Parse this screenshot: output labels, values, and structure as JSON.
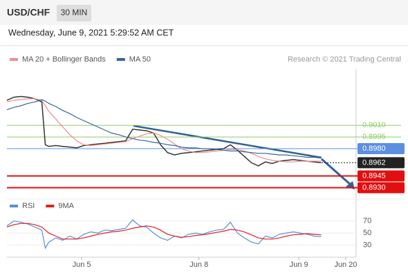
{
  "header": {
    "symbol": "USD/CHF",
    "interval": "30 MIN",
    "timestamp": "Wednesday, June 9, 2021 5:29:52 AM CET"
  },
  "source": "Research © 2021 Trading Central",
  "chart_data": [
    {
      "type": "line",
      "x": [
        0,
        2,
        4,
        6,
        8,
        10,
        11,
        12,
        14,
        16,
        18,
        20,
        22,
        24,
        26,
        28,
        30,
        32,
        34,
        36,
        38,
        40,
        42,
        44,
        46,
        48,
        50,
        52,
        54,
        56,
        58,
        60,
        62,
        64,
        66,
        68,
        70,
        72,
        74,
        76,
        78,
        80,
        82,
        84,
        86,
        88,
        90
      ],
      "xlim": [
        0,
        100
      ],
      "xticks": [
        {
          "value": 21.4,
          "label": "Jun 5"
        },
        {
          "value": 55,
          "label": "Jun 8"
        },
        {
          "value": 83.6,
          "label": "Jun 9"
        },
        {
          "value": 97,
          "label": "Jun 20"
        }
      ],
      "ylim": [
        0.8918,
        0.9082
      ],
      "series": [
        {
          "color": "#333333",
          "values": [
            0.9042,
            0.9046,
            0.9047,
            0.9046,
            0.9044,
            0.904,
            0.8985,
            0.8983,
            0.8984,
            0.8983,
            0.8982,
            0.8981,
            0.8984,
            0.8985,
            0.8986,
            0.8987,
            0.8988,
            0.8989,
            0.899,
            0.9005,
            0.9004,
            0.9003,
            0.9,
            0.8985,
            0.8975,
            0.8972,
            0.8974,
            0.8975,
            0.8976,
            0.8977,
            0.8978,
            0.8979,
            0.898,
            0.8985,
            0.8978,
            0.897,
            0.8962,
            0.8958,
            0.8963,
            0.8961,
            0.8964,
            0.8965,
            0.8966,
            0.8965,
            0.8964,
            0.8963,
            0.8962
          ]
        },
        {
          "name": "MA 20 + Bollinger Bands",
          "color": "#f08c8c",
          "values": [
            0.904,
            0.9042,
            0.9043,
            0.9044,
            0.9044,
            0.9042,
            0.9035,
            0.9028,
            0.9018,
            0.9008,
            0.8998,
            0.899,
            0.8985,
            0.8984,
            0.8985,
            0.8986,
            0.8987,
            0.8988,
            0.8989,
            0.8993,
            0.8996,
            0.8999,
            0.9,
            0.8997,
            0.8992,
            0.8986,
            0.898,
            0.8977,
            0.8975,
            0.8975,
            0.8976,
            0.8977,
            0.8978,
            0.8979,
            0.8979,
            0.8977,
            0.8974,
            0.897,
            0.8967,
            0.8965,
            0.8964,
            0.8963,
            0.8963,
            0.8964,
            0.8964,
            0.8964,
            0.8964
          ]
        },
        {
          "name": "MA 50",
          "color": "#336699",
          "values": [
            0.903,
            0.9033,
            0.9035,
            0.9038,
            0.904,
            0.9043,
            0.9041,
            0.9038,
            0.9034,
            0.9029,
            0.9025,
            0.902,
            0.9016,
            0.9012,
            0.9008,
            0.9004,
            0.9,
            0.8998,
            0.8995,
            0.8993,
            0.8991,
            0.899,
            0.8988,
            0.8987,
            0.8985,
            0.8984,
            0.8982,
            0.8981,
            0.8981,
            0.898,
            0.898,
            0.8979,
            0.8978,
            0.8977,
            0.8977,
            0.8976,
            0.8975,
            0.8974,
            0.8974,
            0.8973,
            0.8972,
            0.8972,
            0.8971,
            0.897,
            0.8969,
            0.8969,
            0.8968
          ]
        }
      ],
      "levels": [
        {
          "value": 0.901,
          "label": "0.9010",
          "color": "#8ccc66",
          "boxed": false
        },
        {
          "value": 0.8995,
          "label": "0.8995",
          "color": "#8ccc66",
          "boxed": false
        },
        {
          "value": 0.898,
          "label": "0.8980",
          "color": "#5b8fe0",
          "boxed": true
        },
        {
          "value": 0.8962,
          "label": "0.8962",
          "color": "#222222",
          "boxed": true
        },
        {
          "value": 0.8945,
          "label": "0.8945",
          "color": "#e01010",
          "boxed": true
        },
        {
          "value": 0.893,
          "label": "0.8930",
          "color": "#e01010",
          "boxed": true
        }
      ]
    },
    {
      "type": "line",
      "x": [
        0,
        2,
        4,
        6,
        8,
        10,
        11,
        12,
        14,
        16,
        18,
        20,
        22,
        24,
        26,
        28,
        30,
        32,
        34,
        36,
        38,
        40,
        42,
        44,
        46,
        48,
        50,
        52,
        54,
        56,
        58,
        60,
        62,
        64,
        66,
        68,
        70,
        72,
        74,
        76,
        78,
        80,
        82,
        84,
        86,
        88,
        90
      ],
      "xlim": [
        0,
        100
      ],
      "ylim": [
        10,
        96
      ],
      "yticks": [
        30,
        50,
        70
      ],
      "series": [
        {
          "name": "RSI",
          "color": "#5b8dd9",
          "values": [
            62,
            70,
            68,
            65,
            60,
            55,
            25,
            35,
            42,
            38,
            45,
            40,
            48,
            52,
            50,
            55,
            54,
            56,
            58,
            72,
            62,
            60,
            50,
            42,
            38,
            45,
            42,
            48,
            50,
            48,
            52,
            55,
            56,
            68,
            50,
            42,
            35,
            32,
            45,
            42,
            48,
            50,
            52,
            50,
            48,
            45,
            44
          ]
        },
        {
          "name": "9MA",
          "color": "#e02020",
          "values": [
            60,
            64,
            66,
            66,
            64,
            60,
            55,
            50,
            45,
            40,
            40,
            40,
            42,
            45,
            48,
            50,
            52,
            53,
            55,
            58,
            60,
            62,
            60,
            55,
            48,
            45,
            43,
            44,
            46,
            47,
            49,
            51,
            53,
            56,
            55,
            52,
            47,
            42,
            40,
            40,
            42,
            45,
            47,
            48,
            49,
            48,
            47
          ]
        }
      ]
    }
  ]
}
